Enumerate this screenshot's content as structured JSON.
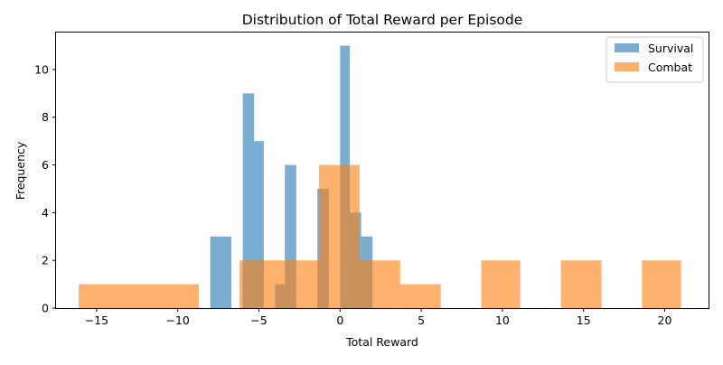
{
  "chart_data": {
    "type": "histogram",
    "title": "Distribution of Total Reward per Episode",
    "xlabel": "Total Reward",
    "ylabel": "Frequency",
    "xlim": [
      -17.5,
      22.7
    ],
    "ylim": [
      0,
      11.55
    ],
    "xticks": [
      -15,
      -10,
      -5,
      0,
      5,
      10,
      15,
      20
    ],
    "xtick_labels": [
      "−15",
      "−10",
      "−5",
      "0",
      "5",
      "10",
      "15",
      "20"
    ],
    "yticks": [
      0,
      2,
      4,
      6,
      8,
      10
    ],
    "ytick_labels": [
      "0",
      "2",
      "4",
      "6",
      "8",
      "10"
    ],
    "legend_position": "top-right",
    "grid": false,
    "series": [
      {
        "name": "Survival",
        "color": "#1f77b4",
        "opacity": 0.6,
        "bins": [
          {
            "x0": -8.0,
            "x1": -6.7,
            "count": 3
          },
          {
            "x0": -6.0,
            "x1": -5.3,
            "count": 9
          },
          {
            "x0": -5.3,
            "x1": -4.7,
            "count": 7
          },
          {
            "x0": -4.0,
            "x1": -3.4,
            "count": 1
          },
          {
            "x0": -3.4,
            "x1": -2.7,
            "count": 6
          },
          {
            "x0": -1.4,
            "x1": -0.7,
            "count": 5
          },
          {
            "x0": 0.0,
            "x1": 0.6,
            "count": 11
          },
          {
            "x0": 0.6,
            "x1": 1.3,
            "count": 4
          },
          {
            "x0": 1.3,
            "x1": 2.0,
            "count": 3
          }
        ]
      },
      {
        "name": "Combat",
        "color": "#ff7f0e",
        "opacity": 0.6,
        "bins": [
          {
            "x0": -16.1,
            "x1": -8.7,
            "count": 1
          },
          {
            "x0": -6.2,
            "x1": -1.3,
            "count": 2
          },
          {
            "x0": -1.3,
            "x1": 1.2,
            "count": 6
          },
          {
            "x0": 1.2,
            "x1": 3.7,
            "count": 2
          },
          {
            "x0": 3.7,
            "x1": 6.2,
            "count": 1
          },
          {
            "x0": 8.7,
            "x1": 11.1,
            "count": 2
          },
          {
            "x0": 13.6,
            "x1": 16.1,
            "count": 2
          },
          {
            "x0": 18.6,
            "x1": 21.0,
            "count": 2
          }
        ]
      }
    ]
  }
}
